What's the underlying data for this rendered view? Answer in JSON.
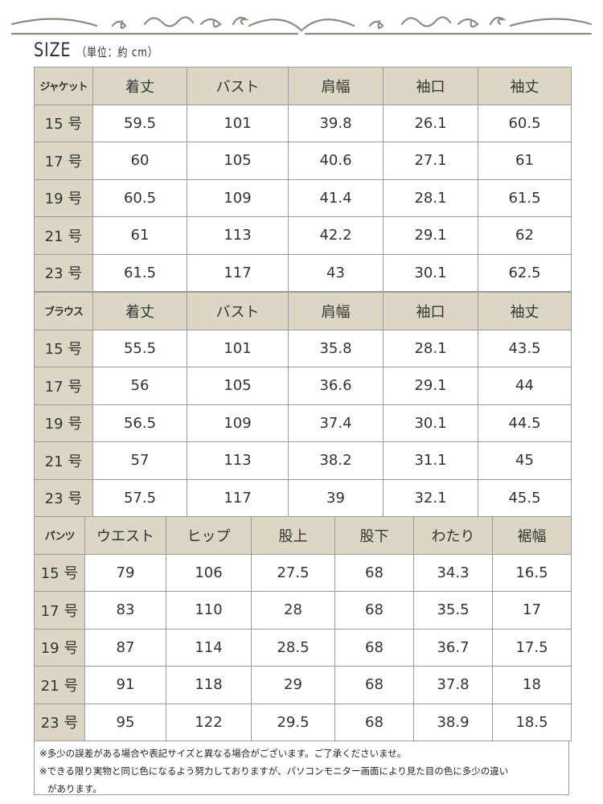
{
  "title": {
    "main": "SIZE",
    "unit": "（単位：約 cm）"
  },
  "colors": {
    "header_bg": "#dcd7c4",
    "border": "#9a9a9a",
    "ornament": "#8f8a80"
  },
  "sections": [
    {
      "label": "ジャケット",
      "columns": [
        "着丈",
        "バスト",
        "肩幅",
        "袖口",
        "袖丈"
      ],
      "rows": [
        [
          "15 号",
          "59.5",
          "101",
          "39.8",
          "26.1",
          "60.5"
        ],
        [
          "17 号",
          "60",
          "105",
          "40.6",
          "27.1",
          "61"
        ],
        [
          "19 号",
          "60.5",
          "109",
          "41.4",
          "28.1",
          "61.5"
        ],
        [
          "21 号",
          "61",
          "113",
          "42.2",
          "29.1",
          "62"
        ],
        [
          "23 号",
          "61.5",
          "117",
          "43",
          "30.1",
          "62.5"
        ]
      ]
    },
    {
      "label": "ブラウス",
      "columns": [
        "着丈",
        "バスト",
        "肩幅",
        "袖口",
        "袖丈"
      ],
      "rows": [
        [
          "15 号",
          "55.5",
          "101",
          "35.8",
          "28.1",
          "43.5"
        ],
        [
          "17 号",
          "56",
          "105",
          "36.6",
          "29.1",
          "44"
        ],
        [
          "19 号",
          "56.5",
          "109",
          "37.4",
          "30.1",
          "44.5"
        ],
        [
          "21 号",
          "57",
          "113",
          "38.2",
          "31.1",
          "45"
        ],
        [
          "23 号",
          "57.5",
          "117",
          "39",
          "32.1",
          "45.5"
        ]
      ]
    },
    {
      "label": "パンツ",
      "columns": [
        "ウエスト",
        "ヒップ",
        "股上",
        "股下",
        "わたり",
        "裾幅"
      ],
      "rows": [
        [
          "15 号",
          "79",
          "106",
          "27.5",
          "68",
          "34.3",
          "16.5"
        ],
        [
          "17 号",
          "83",
          "110",
          "28",
          "68",
          "35.5",
          "17"
        ],
        [
          "19 号",
          "87",
          "114",
          "28.5",
          "68",
          "36.7",
          "17.5"
        ],
        [
          "21 号",
          "91",
          "118",
          "29",
          "68",
          "37.8",
          "18"
        ],
        [
          "23 号",
          "95",
          "122",
          "29.5",
          "68",
          "38.9",
          "18.5"
        ]
      ]
    }
  ],
  "notes": [
    "※多少の誤差がある場合や表記サイズと異なる場合がございます。ご了承くださいませ。",
    "※できる限り実物と同じ色になるよう努力しておりますが、パソコンモニター画面により見た目の色に多少の違い",
    "があります。"
  ]
}
